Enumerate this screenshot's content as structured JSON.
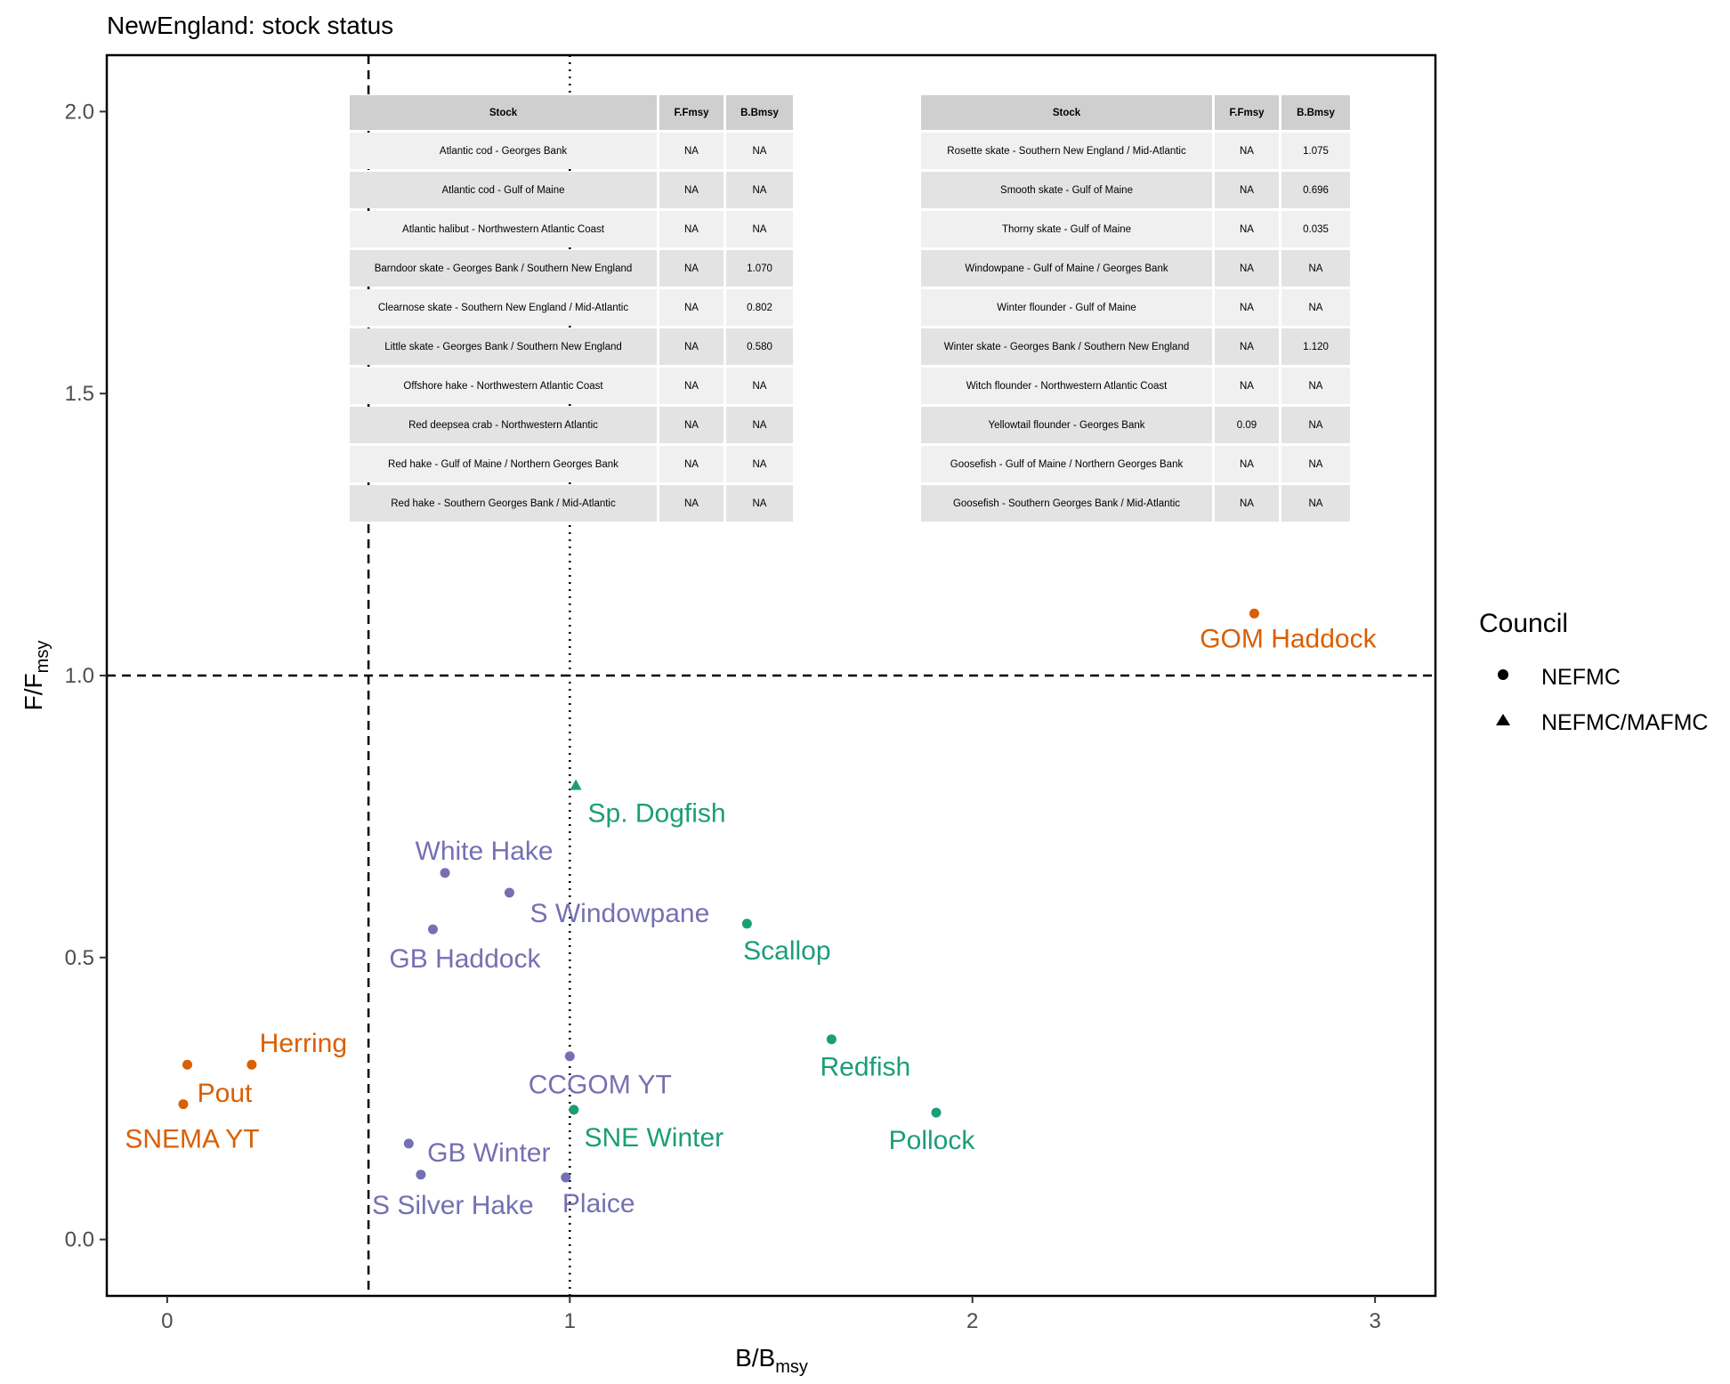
{
  "chart_data": {
    "type": "scatter",
    "title": "NewEngland: stock status",
    "xlabel": {
      "main": "B",
      "sub": "msy"
    },
    "ylabel": {
      "main": "F",
      "sub": "msy"
    },
    "xlim": [
      -0.15,
      3.15
    ],
    "ylim": [
      -0.1,
      2.1
    ],
    "xticks": [
      0,
      1,
      2,
      3
    ],
    "xtick_labels": [
      "0",
      "1",
      "2",
      "3"
    ],
    "yticks": [
      0.0,
      0.5,
      1.0,
      1.5,
      2.0
    ],
    "ytick_labels": [
      "0.0",
      "0.5",
      "1.0",
      "1.5",
      "2.0"
    ],
    "grid": false,
    "reference_lines": [
      {
        "axis": "x",
        "value": 0.5,
        "style": "dashed"
      },
      {
        "axis": "x",
        "value": 1.0,
        "style": "dotted"
      },
      {
        "axis": "y",
        "value": 1.0,
        "style": "dashed"
      }
    ],
    "legend": {
      "title": "Council",
      "position": "right",
      "entries": [
        {
          "label": "NEFMC",
          "shape": "circle"
        },
        {
          "label": "NEFMC/MAFMC",
          "shape": "triangle"
        }
      ]
    },
    "colors": {
      "orange": "#d95f02",
      "purple": "#7570b3",
      "green": "#1b9e77"
    },
    "points": [
      {
        "label": "GOM Haddock",
        "x": 2.7,
        "y": 1.11,
        "council": "NEFMC",
        "color": "orange"
      },
      {
        "label": "Herring",
        "x": 0.21,
        "y": 0.31,
        "council": "NEFMC",
        "color": "orange"
      },
      {
        "label": "Pout",
        "x": 0.05,
        "y": 0.31,
        "council": "NEFMC",
        "color": "orange"
      },
      {
        "label": "SNEMA YT",
        "x": 0.04,
        "y": 0.24,
        "council": "NEFMC",
        "color": "orange"
      },
      {
        "label": "White Hake",
        "x": 0.69,
        "y": 0.65,
        "council": "NEFMC",
        "color": "purple"
      },
      {
        "label": "S Windowpane",
        "x": 0.85,
        "y": 0.615,
        "council": "NEFMC",
        "color": "purple"
      },
      {
        "label": "GB Haddock",
        "x": 0.66,
        "y": 0.55,
        "council": "NEFMC",
        "color": "purple"
      },
      {
        "label": "CCGOM YT",
        "x": 1.0,
        "y": 0.325,
        "council": "NEFMC",
        "color": "purple"
      },
      {
        "label": "GB Winter",
        "x": 0.6,
        "y": 0.17,
        "council": "NEFMC",
        "color": "purple"
      },
      {
        "label": "S Silver Hake",
        "x": 0.63,
        "y": 0.115,
        "council": "NEFMC",
        "color": "purple"
      },
      {
        "label": "Plaice",
        "x": 0.99,
        "y": 0.11,
        "council": "NEFMC",
        "color": "purple"
      },
      {
        "label": "Sp. Dogfish",
        "x": 1.015,
        "y": 0.805,
        "council": "NEFMC/MAFMC",
        "color": "green"
      },
      {
        "label": "Scallop",
        "x": 1.44,
        "y": 0.56,
        "council": "NEFMC",
        "color": "green"
      },
      {
        "label": "Redfish",
        "x": 1.65,
        "y": 0.355,
        "council": "NEFMC",
        "color": "green"
      },
      {
        "label": "SNE Winter",
        "x": 1.01,
        "y": 0.23,
        "council": "NEFMC",
        "color": "green"
      },
      {
        "label": "Pollock",
        "x": 1.91,
        "y": 0.225,
        "council": "NEFMC",
        "color": "green"
      }
    ]
  },
  "tables": [
    {
      "headers": [
        "Stock",
        "F.Fmsy",
        "B.Bmsy"
      ],
      "rows": [
        [
          "Atlantic cod - Georges Bank",
          "NA",
          "NA"
        ],
        [
          "Atlantic cod - Gulf of Maine",
          "NA",
          "NA"
        ],
        [
          "Atlantic halibut - Northwestern Atlantic Coast",
          "NA",
          "NA"
        ],
        [
          "Barndoor skate - Georges Bank / Southern New England",
          "NA",
          "1.070"
        ],
        [
          "Clearnose skate - Southern New England / Mid-Atlantic",
          "NA",
          "0.802"
        ],
        [
          "Little skate - Georges Bank / Southern New England",
          "NA",
          "0.580"
        ],
        [
          "Offshore hake - Northwestern Atlantic Coast",
          "NA",
          "NA"
        ],
        [
          "Red deepsea crab - Northwestern Atlantic",
          "NA",
          "NA"
        ],
        [
          "Red hake - Gulf of Maine / Northern Georges Bank",
          "NA",
          "NA"
        ],
        [
          "Red hake - Southern Georges Bank / Mid-Atlantic",
          "NA",
          "NA"
        ]
      ]
    },
    {
      "headers": [
        "Stock",
        "F.Fmsy",
        "B.Bmsy"
      ],
      "rows": [
        [
          "Rosette skate - Southern New England / Mid-Atlantic",
          "NA",
          "1.075"
        ],
        [
          "Smooth skate - Gulf of Maine",
          "NA",
          "0.696"
        ],
        [
          "Thorny skate - Gulf of Maine",
          "NA",
          "0.035"
        ],
        [
          "Windowpane - Gulf of Maine / Georges Bank",
          "NA",
          "NA"
        ],
        [
          "Winter flounder - Gulf of Maine",
          "NA",
          "NA"
        ],
        [
          "Winter skate - Georges Bank / Southern New England",
          "NA",
          "1.120"
        ],
        [
          "Witch flounder - Northwestern Atlantic Coast",
          "NA",
          "NA"
        ],
        [
          "Yellowtail flounder - Georges Bank",
          "0.09",
          "NA"
        ],
        [
          "Goosefish - Gulf of Maine / Northern Georges Bank",
          "NA",
          "NA"
        ],
        [
          "Goosefish - Southern Georges Bank / Mid-Atlantic",
          "NA",
          "NA"
        ]
      ]
    }
  ]
}
